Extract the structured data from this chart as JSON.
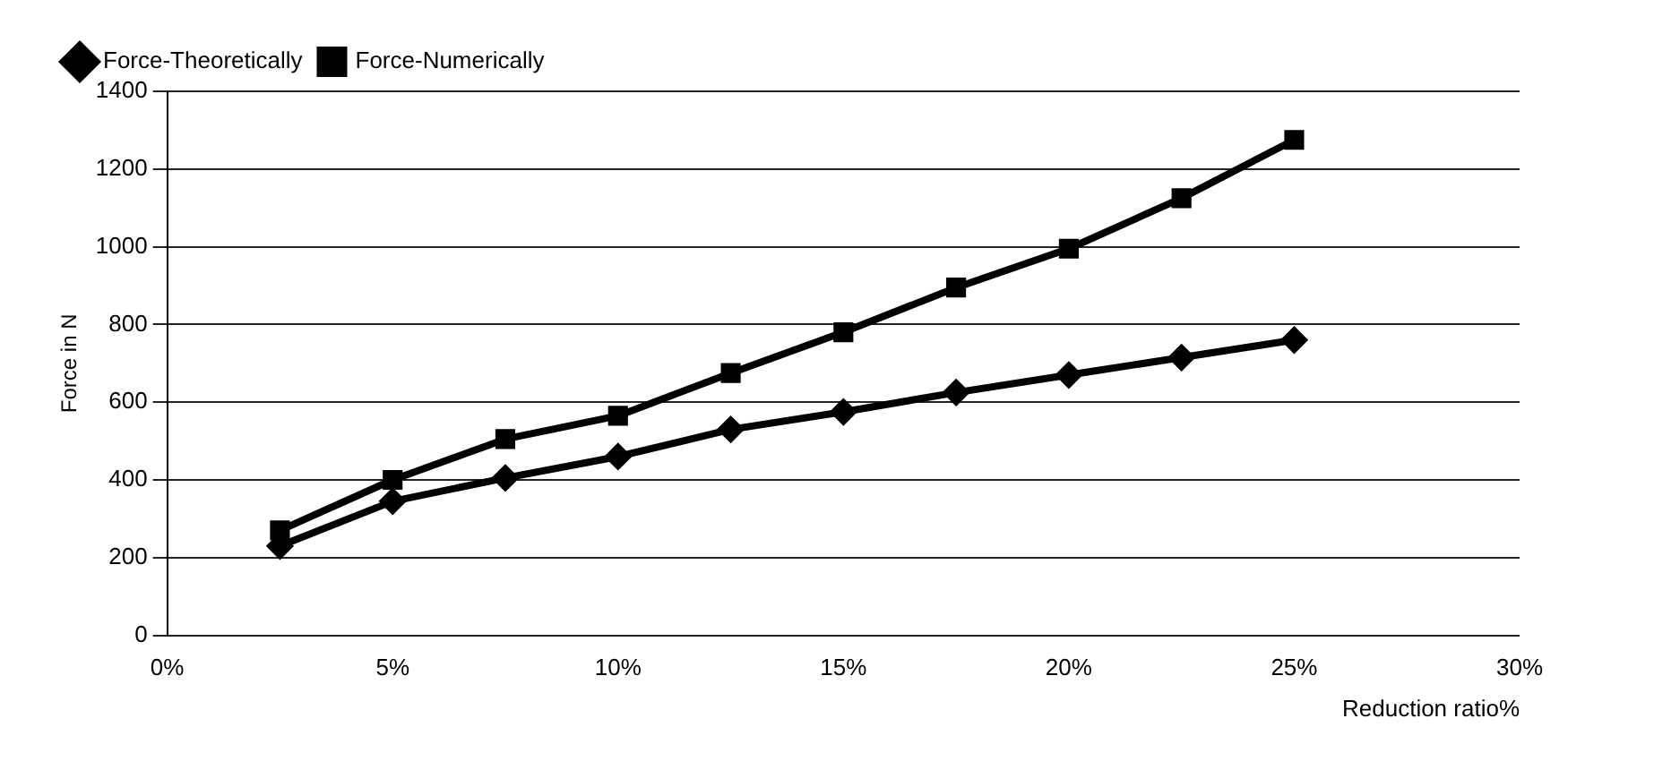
{
  "chart_data": {
    "type": "line",
    "xlabel": "Reduction ratio%",
    "ylabel": "Force in N",
    "x": [
      2.5,
      5,
      7.5,
      10,
      12.5,
      15,
      17.5,
      20,
      22.5,
      25
    ],
    "series": [
      {
        "name": "Force-Theoretically",
        "color": "#000000",
        "marker": "diamond",
        "values": [
          230,
          345,
          405,
          460,
          530,
          575,
          625,
          670,
          715,
          760
        ]
      },
      {
        "name": "Force-Numerically",
        "color": "#000000",
        "marker": "square",
        "values": [
          270,
          400,
          505,
          565,
          675,
          780,
          895,
          995,
          1125,
          1275
        ]
      }
    ],
    "xlim": [
      0,
      30
    ],
    "xticks": [
      {
        "value": 0,
        "label": "0%"
      },
      {
        "value": 5,
        "label": "5%"
      },
      {
        "value": 10,
        "label": "10%"
      },
      {
        "value": 15,
        "label": "15%"
      },
      {
        "value": 20,
        "label": "20%"
      },
      {
        "value": 25,
        "label": "25%"
      },
      {
        "value": 30,
        "label": "30%"
      }
    ],
    "ylim": [
      0,
      1400
    ],
    "yticks": [
      0,
      200,
      400,
      600,
      800,
      1000,
      1200,
      1400
    ],
    "grid": "y",
    "legend": "top left",
    "line_style": "solid"
  }
}
